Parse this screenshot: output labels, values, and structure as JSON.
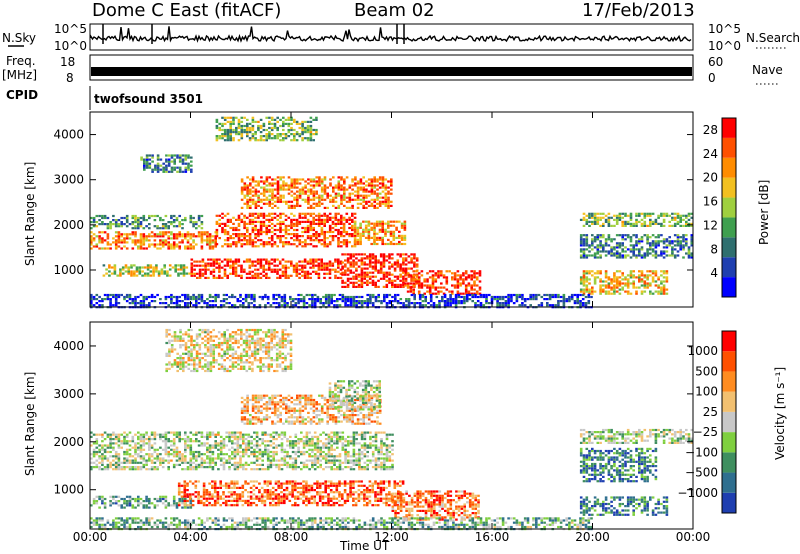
{
  "header": {
    "title": "Dome C East (fitACF)",
    "beam": "Beam 02",
    "date": "17/Feb/2013"
  },
  "panels": {
    "nsky_label": "N.Sky",
    "nsky_ticks": [
      "10^5",
      "10^0"
    ],
    "nsearch_label": "N.Search",
    "freq_label_1": "Freq.",
    "freq_label_2": "[MHz]",
    "freq_ticks": [
      "18",
      "8"
    ],
    "nave_label": "Nave",
    "nave_ticks": [
      "60",
      "0"
    ],
    "cpid_label": "CPID",
    "cpid_text": "twofsound 3501"
  },
  "chart_data": [
    {
      "type": "heatmap",
      "name": "power",
      "ylabel": "Slant Range [km]",
      "xlabel": "Time UT",
      "x_ticks": [
        "00:00",
        "04:00",
        "08:00",
        "12:00",
        "16:00",
        "20:00",
        "00:00"
      ],
      "y_ticks": [
        1000,
        2000,
        3000,
        4000
      ],
      "x_range_hours": [
        0,
        24
      ],
      "y_range_km": [
        180,
        4500
      ],
      "colorbar": {
        "label": "Power [dB]",
        "ticks": [
          4,
          8,
          12,
          16,
          20,
          24,
          28
        ],
        "range": [
          0,
          30
        ],
        "colors": [
          "#0000ff",
          "#1f3fb0",
          "#2f6f6f",
          "#3f9f4f",
          "#9fcf3f",
          "#f2c020",
          "#ff8c00",
          "#ff5000",
          "#ff0000"
        ]
      },
      "bands": [
        {
          "t0": 0.0,
          "t1": 4.5,
          "r0": 1950,
          "r1": 2250,
          "level": 0.35
        },
        {
          "t0": 0.0,
          "t1": 5.0,
          "r0": 1500,
          "r1": 1900,
          "level": 0.75
        },
        {
          "t0": 5.0,
          "t1": 10.5,
          "r0": 1550,
          "r1": 2300,
          "level": 0.85
        },
        {
          "t0": 10.5,
          "t1": 12.5,
          "r0": 1600,
          "r1": 2100,
          "level": 0.7
        },
        {
          "t0": 0.5,
          "t1": 4.0,
          "r0": 900,
          "r1": 1150,
          "level": 0.55
        },
        {
          "t0": 4.0,
          "t1": 10.0,
          "r0": 850,
          "r1": 1300,
          "level": 0.9
        },
        {
          "t0": 10.0,
          "t1": 13.0,
          "r0": 650,
          "r1": 1400,
          "level": 0.95
        },
        {
          "t0": 12.5,
          "t1": 15.5,
          "r0": 500,
          "r1": 1000,
          "level": 0.9
        },
        {
          "t0": 6.0,
          "t1": 12.0,
          "r0": 2400,
          "r1": 3100,
          "level": 0.75
        },
        {
          "t0": 2.0,
          "t1": 4.0,
          "r0": 3200,
          "r1": 3600,
          "level": 0.3
        },
        {
          "t0": 5.0,
          "t1": 9.0,
          "r0": 3900,
          "r1": 4400,
          "level": 0.45
        },
        {
          "t0": 19.5,
          "t1": 24.0,
          "r0": 2000,
          "r1": 2300,
          "level": 0.45
        },
        {
          "t0": 19.5,
          "t1": 24.0,
          "r0": 1300,
          "r1": 1800,
          "level": 0.3
        },
        {
          "t0": 19.5,
          "t1": 23.0,
          "r0": 500,
          "r1": 1000,
          "level": 0.65
        },
        {
          "t0": 0.0,
          "t1": 20.0,
          "r0": 200,
          "r1": 500,
          "level": 0.15
        }
      ]
    },
    {
      "type": "heatmap",
      "name": "velocity",
      "ylabel": "Slant Range [km]",
      "xlabel": "Time UT",
      "x_ticks": [
        "00:00",
        "04:00",
        "08:00",
        "12:00",
        "16:00",
        "20:00",
        "00:00"
      ],
      "y_ticks": [
        1000,
        2000,
        3000,
        4000
      ],
      "x_range_hours": [
        0,
        24
      ],
      "y_range_km": [
        180,
        4500
      ],
      "colorbar": {
        "label": "Velocity [m s⁻¹]",
        "ticks": [
          "1000",
          "500",
          "100",
          "25",
          "−25",
          "−100",
          "−500",
          "−1000"
        ],
        "colors": [
          "#1f3fb0",
          "#2f6f8f",
          "#3f8f5f",
          "#7fcf3f",
          "#c8c8c8",
          "#f2c070",
          "#ff8c20",
          "#ff5000",
          "#ff0000"
        ]
      },
      "bands": [
        {
          "t0": 0.0,
          "t1": 12.0,
          "r0": 1450,
          "r1": 2250,
          "level": 0.45
        },
        {
          "t0": 0.0,
          "t1": 4.0,
          "r0": 650,
          "r1": 900,
          "level": 0.3
        },
        {
          "t0": 3.5,
          "t1": 12.5,
          "r0": 700,
          "r1": 1200,
          "level": 0.8
        },
        {
          "t0": 12.0,
          "t1": 15.5,
          "r0": 400,
          "r1": 1000,
          "level": 0.75
        },
        {
          "t0": 6.0,
          "t1": 11.5,
          "r0": 2400,
          "r1": 3000,
          "level": 0.65
        },
        {
          "t0": 9.5,
          "t1": 11.5,
          "r0": 2700,
          "r1": 3300,
          "level": 0.45
        },
        {
          "t0": 3.0,
          "t1": 8.0,
          "r0": 3500,
          "r1": 4400,
          "level": 0.55
        },
        {
          "t0": 19.5,
          "t1": 24.0,
          "r0": 2000,
          "r1": 2300,
          "level": 0.45
        },
        {
          "t0": 19.5,
          "t1": 22.5,
          "r0": 1200,
          "r1": 1900,
          "level": 0.2
        },
        {
          "t0": 19.5,
          "t1": 23.0,
          "r0": 500,
          "r1": 900,
          "level": 0.2
        },
        {
          "t0": 0.0,
          "t1": 20.0,
          "r0": 200,
          "r1": 450,
          "level": 0.35
        }
      ]
    }
  ]
}
